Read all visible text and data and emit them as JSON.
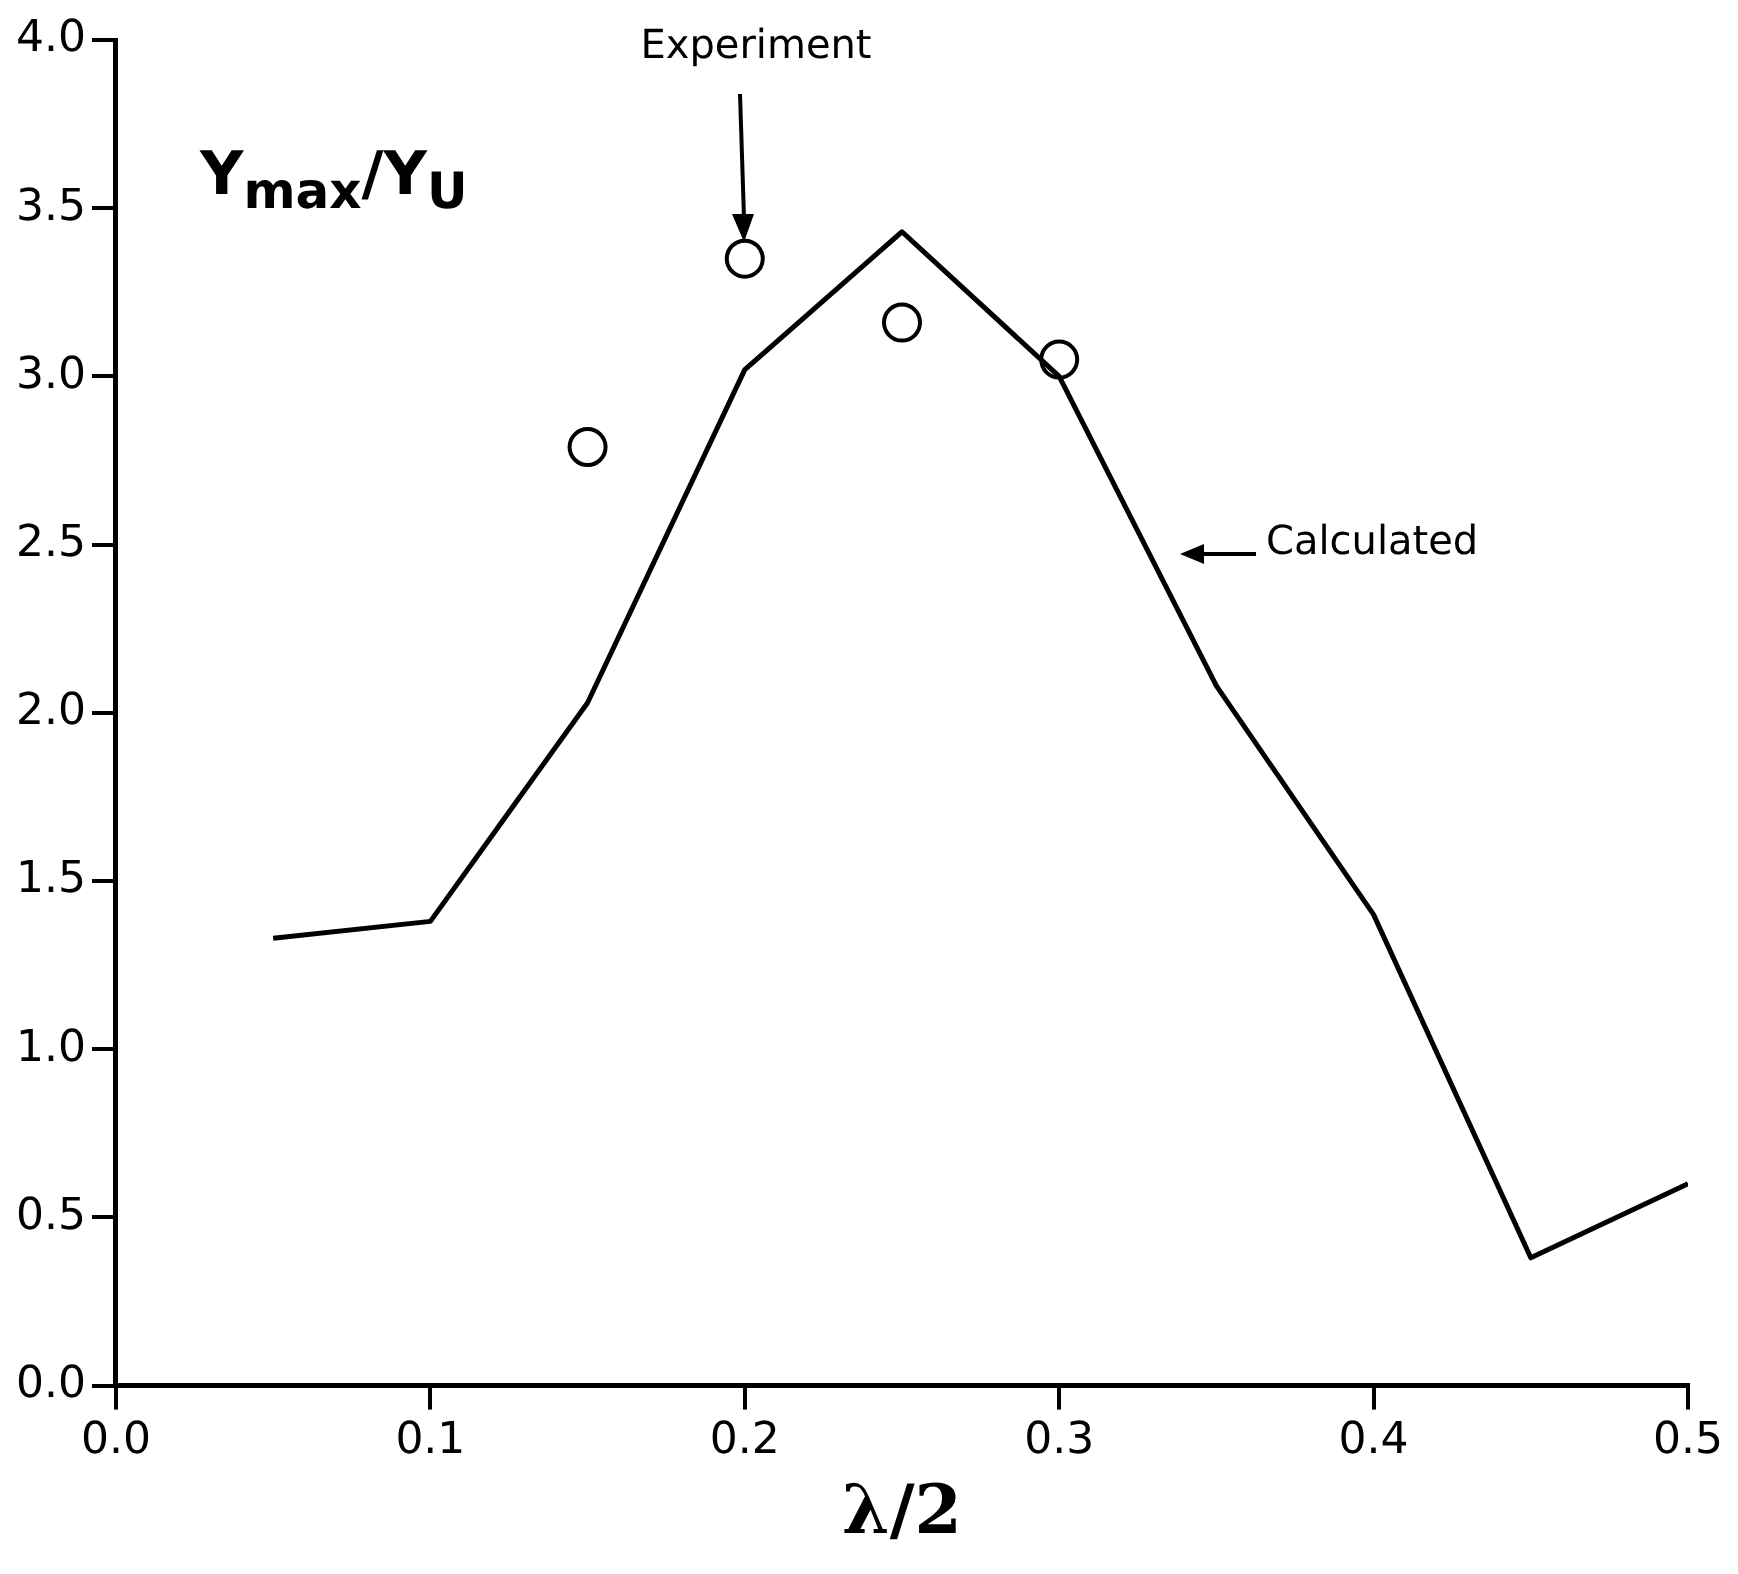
{
  "chart_data": {
    "type": "line",
    "xlabel": "λ/2",
    "ylabel": "Y$_{max}$/Y$_{U}$",
    "xlim": [
      0,
      0.5
    ],
    "xticks": [
      {
        "value": 0,
        "label": "0.0"
      },
      0.1,
      0.2,
      0.3,
      0.4,
      0.5
    ],
    "ylim": [
      0,
      4
    ],
    "yticks": [
      {
        "value": 0,
        "label": "0.0"
      },
      0.5,
      {
        "value": 1,
        "label": "1.0"
      },
      1.5,
      {
        "value": 2,
        "label": "2.0"
      },
      2.5,
      {
        "value": 3,
        "label": "3.0"
      },
      3.5,
      {
        "value": 4,
        "label": "4.0"
      }
    ],
    "grid": false,
    "legend": false,
    "series": [
      {
        "color": "#000000",
        "marker": "none",
        "x": [
          0.05,
          0.1,
          0.15,
          0.2,
          0.25,
          0.3,
          0.35,
          0.4,
          0.45,
          0.5
        ],
        "values": [
          1.33,
          1.38,
          2.03,
          3.02,
          3.43,
          3.0,
          2.08,
          1.4,
          0.38,
          0.6
        ]
      },
      {
        "type": "scatter",
        "color": "#000000",
        "marker": "circle",
        "x": [
          0.15,
          0.2,
          0.25,
          0.3
        ],
        "values": [
          2.79,
          3.35,
          3.16,
          3.05
        ]
      }
    ],
    "annotations": [
      "Experiment",
      "Calculated"
    ]
  }
}
